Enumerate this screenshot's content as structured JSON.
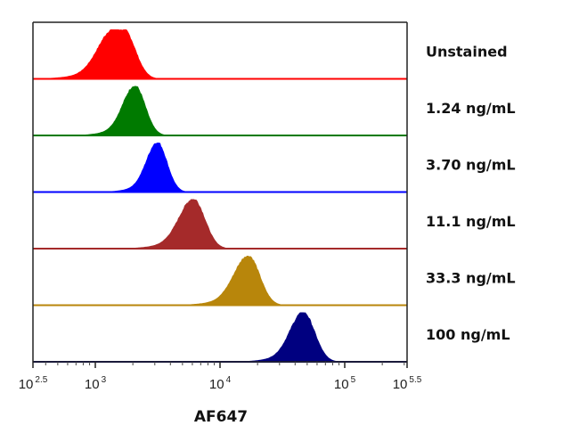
{
  "chart_data": {
    "type": "area",
    "subtype": "stacked-offset histogram overlay (flow cytometry)",
    "title": "",
    "xlabel": "AF647",
    "ylabel": "",
    "xscale": "log10",
    "xlim_log10": [
      2.5,
      5.5
    ],
    "x_ticks": [
      {
        "log10": 2.5,
        "base": "10",
        "exp": "2.5"
      },
      {
        "log10": 3,
        "base": "10",
        "exp": "3"
      },
      {
        "log10": 4,
        "base": "10",
        "exp": "4"
      },
      {
        "log10": 5,
        "base": "10",
        "exp": "5"
      },
      {
        "log10": 5.5,
        "base": "10",
        "exp": "5.5"
      }
    ],
    "grid": false,
    "legend_placement": "right, one label per row",
    "series": [
      {
        "name": "Unstained",
        "color": "#ff0000",
        "peak_log10": 3.19,
        "peak_value": 1550,
        "spread_left": 0.28,
        "spread_right": 0.2,
        "flat_top": true
      },
      {
        "name": "1.24 ng/mL",
        "color": "#007a00",
        "peak_log10": 3.32,
        "peak_value": 2100,
        "spread_left": 0.22,
        "spread_right": 0.18,
        "flat_top": false
      },
      {
        "name": "3.70 ng/mL",
        "color": "#0000ff",
        "peak_log10": 3.5,
        "peak_value": 3150,
        "spread_left": 0.2,
        "spread_right": 0.17,
        "flat_top": false
      },
      {
        "name": "11.1 ng/mL",
        "color": "#a52a2a",
        "peak_log10": 3.79,
        "peak_value": 6150,
        "spread_left": 0.26,
        "spread_right": 0.2,
        "flat_top": false
      },
      {
        "name": "33.3 ng/mL",
        "color": "#b8860b",
        "peak_log10": 4.23,
        "peak_value": 17000,
        "spread_left": 0.26,
        "spread_right": 0.2,
        "flat_top": false
      },
      {
        "name": "100 ng/mL",
        "color": "#000080",
        "peak_log10": 4.67,
        "peak_value": 47000,
        "spread_left": 0.24,
        "spread_right": 0.2,
        "flat_top": false
      }
    ]
  }
}
